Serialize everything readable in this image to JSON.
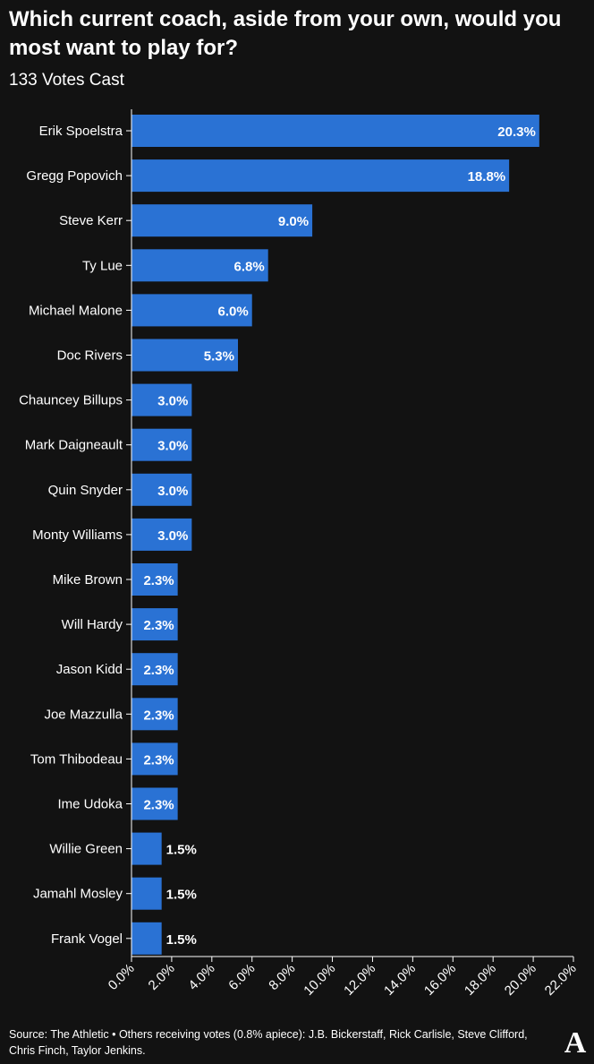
{
  "header": {
    "title": "Which current coach, aside from your own, would you most want to play for?",
    "subtitle": "133 Votes Cast"
  },
  "colors": {
    "background": "#121212",
    "bar": "#2a72d4",
    "text": "#ffffff",
    "axis": "#ffffff"
  },
  "chart_data": {
    "type": "bar",
    "orientation": "horizontal",
    "categories": [
      "Erik Spoelstra",
      "Gregg Popovich",
      "Steve Kerr",
      "Ty Lue",
      "Michael Malone",
      "Doc Rivers",
      "Chauncey Billups",
      "Mark Daigneault",
      "Quin Snyder",
      "Monty Williams",
      "Mike Brown",
      "Will Hardy",
      "Jason Kidd",
      "Joe Mazzulla",
      "Tom Thibodeau",
      "Ime Udoka",
      "Willie Green",
      "Jamahl Mosley",
      "Frank Vogel"
    ],
    "values": [
      20.3,
      18.8,
      9.0,
      6.8,
      6.0,
      5.3,
      3.0,
      3.0,
      3.0,
      3.0,
      2.3,
      2.3,
      2.3,
      2.3,
      2.3,
      2.3,
      1.5,
      1.5,
      1.5
    ],
    "data_labels": [
      "20.3%",
      "18.8%",
      "9.0%",
      "6.8%",
      "6.0%",
      "5.3%",
      "3.0%",
      "3.0%",
      "3.0%",
      "3.0%",
      "2.3%",
      "2.3%",
      "2.3%",
      "2.3%",
      "2.3%",
      "2.3%",
      "1.5%",
      "1.5%",
      "1.5%"
    ],
    "xlim": [
      0,
      22
    ],
    "xticks": [
      0,
      2,
      4,
      6,
      8,
      10,
      12,
      14,
      16,
      18,
      20,
      22
    ],
    "xtick_labels": [
      "0.0%",
      "2.0%",
      "4.0%",
      "6.0%",
      "8.0%",
      "10.0%",
      "12.0%",
      "14.0%",
      "16.0%",
      "18.0%",
      "20.0%",
      "22.0%"
    ],
    "grid": false,
    "legend": "none"
  },
  "footer": {
    "source": "Source: The Athletic • Others receiving votes (0.8% apiece): J.B. Bickerstaff, Rick Carlisle, Steve Clifford, Chris Finch, Taylor Jenkins."
  },
  "logo": {
    "icon": "athletic-logo-icon",
    "text": "A"
  }
}
